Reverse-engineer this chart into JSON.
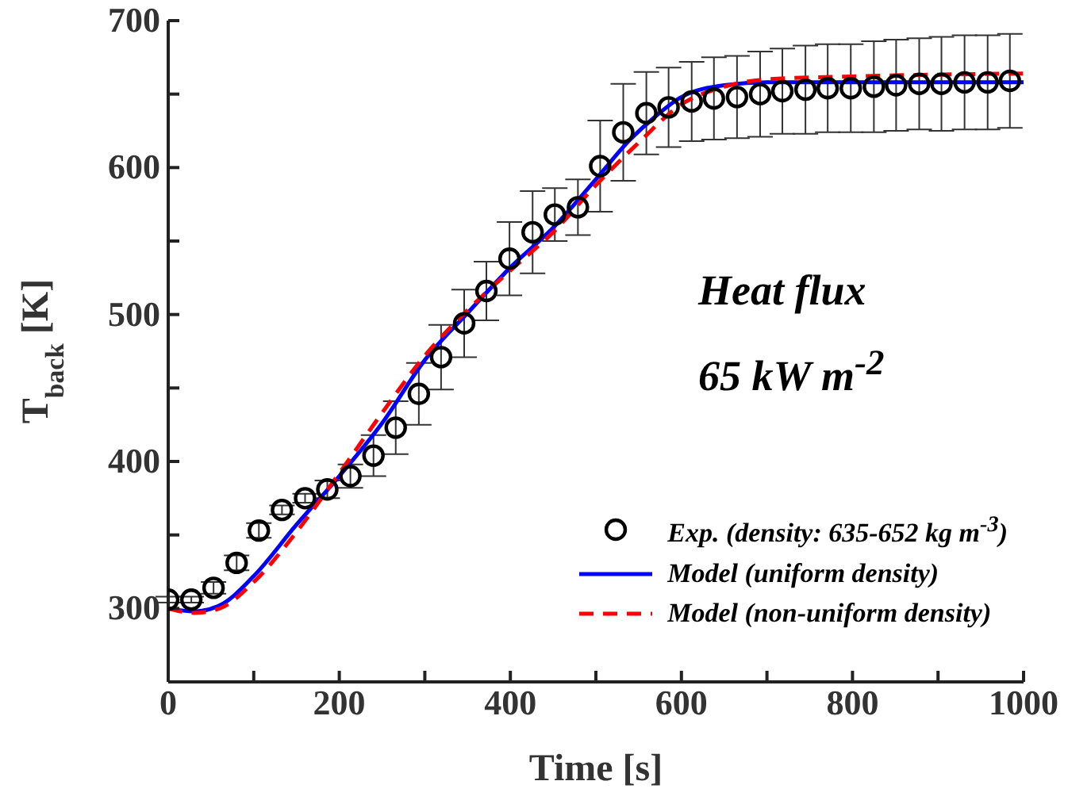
{
  "chart_data": {
    "type": "line",
    "xlabel": "Time [s]",
    "ylabel": "T$_{back}$ [K]",
    "xlim": [
      0,
      1000
    ],
    "xticks": [
      0,
      {
        "value": 100,
        "label": null
      },
      200,
      {
        "value": 300,
        "label": null
      },
      400,
      {
        "value": 500,
        "label": null
      },
      600,
      {
        "value": 700,
        "label": null
      },
      800,
      {
        "value": 900,
        "label": null
      },
      1000
    ],
    "ylim": [
      250,
      700
    ],
    "yticks": [
      300,
      {
        "value": 350,
        "label": null
      },
      400,
      {
        "value": 450,
        "label": null
      },
      500,
      {
        "value": 550,
        "label": null
      },
      600,
      {
        "value": 650,
        "label": null
      },
      700
    ],
    "grid": false,
    "legend": "bottom right",
    "annotations": [
      "Heat flux",
      "65 kW m$^{-2}$"
    ],
    "series": [
      {
        "name": "Exp. (density: 635-652 kg m$^{-3}$)",
        "type": "scatter",
        "marker": "circle",
        "color": "#000000",
        "x": [
          0,
          27,
          53,
          80,
          106,
          133,
          160,
          186,
          213,
          240,
          266,
          293,
          319,
          346,
          372,
          399,
          426,
          452,
          479,
          505,
          532,
          559,
          585,
          612,
          638,
          665,
          692,
          718,
          745,
          771,
          798,
          825,
          851,
          878,
          904,
          931,
          958,
          984
        ],
        "values": [
          306,
          306,
          314,
          331,
          353,
          367,
          375,
          381,
          390,
          404,
          423,
          446,
          471,
          494,
          516,
          538,
          556,
          568,
          573,
          601,
          624,
          637,
          641,
          645,
          647,
          648,
          650,
          652,
          653,
          654,
          654,
          655,
          656,
          657,
          657,
          658,
          658,
          659
        ],
        "errors": [
          2,
          2,
          4,
          5,
          5,
          3,
          3,
          6,
          8,
          14,
          18,
          21,
          22,
          23,
          20,
          25,
          28,
          18,
          19,
          31,
          33,
          28,
          27,
          27,
          28,
          28,
          29,
          29,
          30,
          30,
          30,
          31,
          31,
          31,
          32,
          32,
          32,
          32
        ]
      },
      {
        "name": "Model (uniform density)",
        "line_style": "solid",
        "marker": "none",
        "color": "#0000ff",
        "x": [
          0,
          30,
          60,
          100,
          150,
          200,
          250,
          300,
          350,
          400,
          450,
          500,
          540,
          570,
          600,
          650,
          700,
          800,
          1000
        ],
        "values": [
          300,
          298,
          302,
          322,
          357,
          390,
          426,
          469,
          501,
          532,
          559,
          592,
          619,
          635,
          648,
          656,
          658,
          658,
          658
        ]
      },
      {
        "name": "Model (non-uniform density)",
        "line_style": "dashed",
        "marker": "none",
        "color": "#ff0000",
        "x": [
          0,
          30,
          60,
          100,
          150,
          200,
          250,
          300,
          350,
          400,
          450,
          500,
          550,
          600,
          650,
          700,
          800,
          1000
        ],
        "values": [
          300,
          297,
          300,
          318,
          352,
          392,
          433,
          472,
          503,
          530,
          556,
          588,
          617,
          643,
          655,
          660,
          662,
          664
        ]
      }
    ]
  }
}
